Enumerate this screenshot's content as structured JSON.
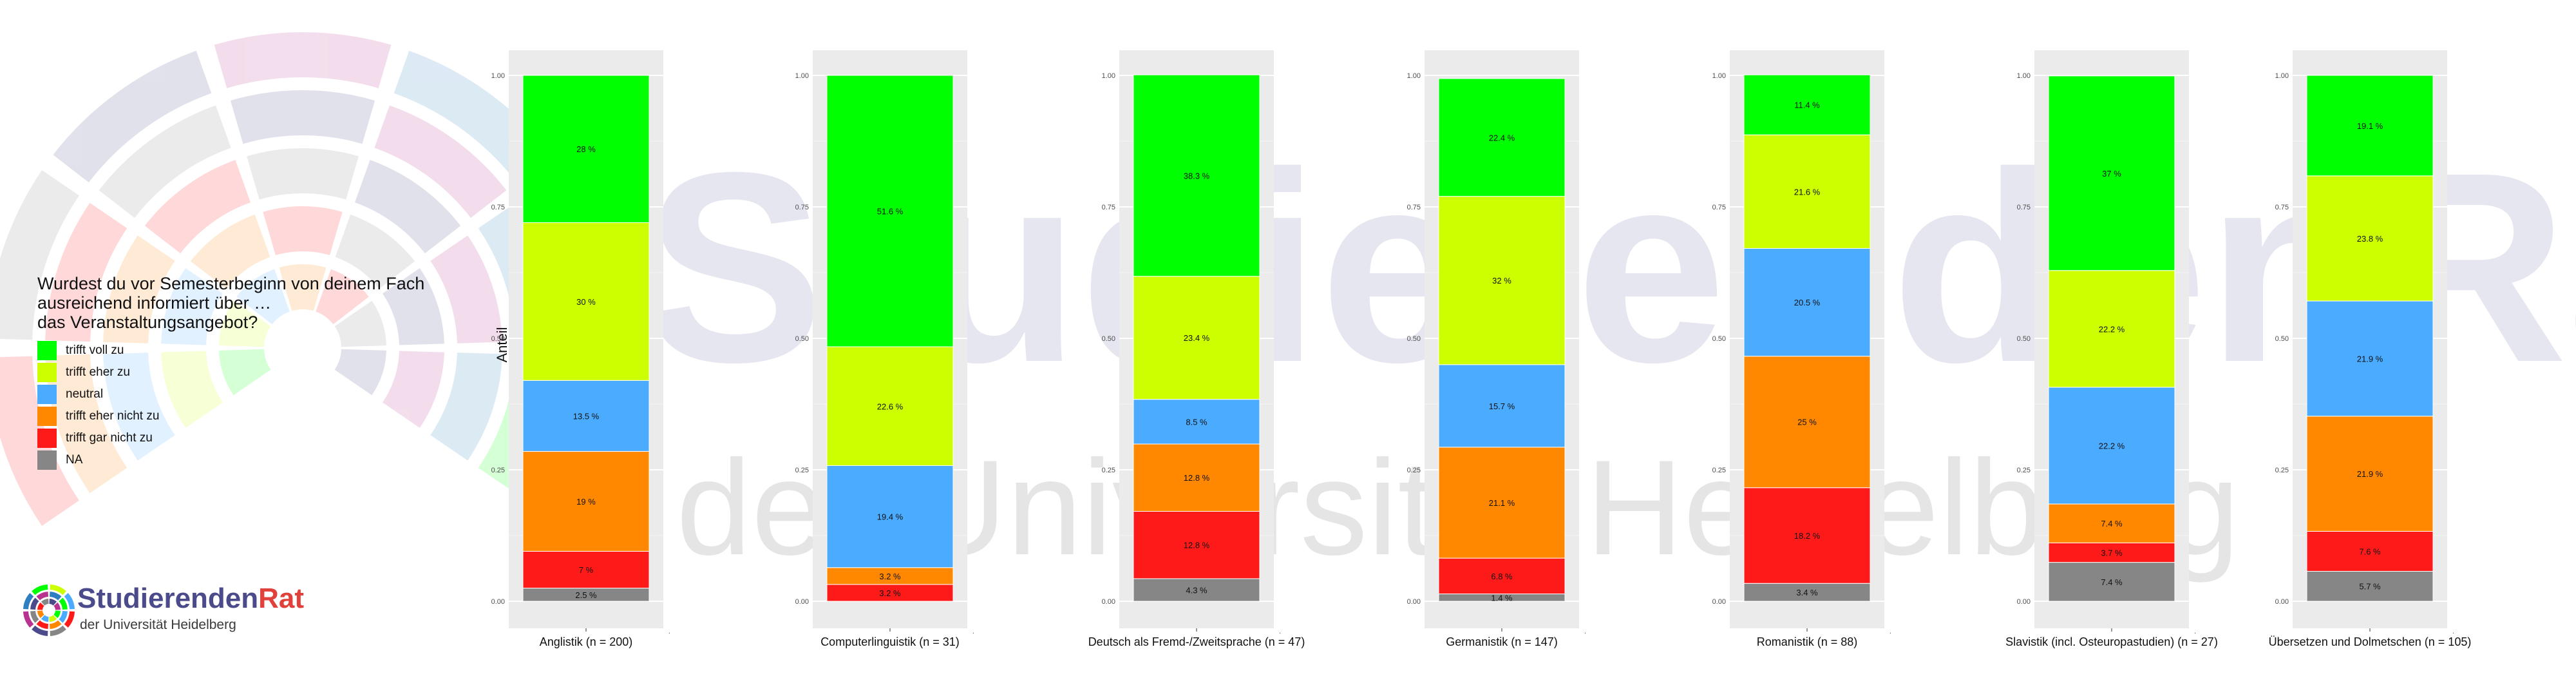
{
  "legend": {
    "title_lines": [
      "Wurdest du vor Semesterbeginn von deinem Fach",
      "ausreichend informiert über …",
      "das Veranstaltungsangebot?"
    ],
    "items": [
      {
        "label": "trifft voll zu",
        "color": "#00ff00"
      },
      {
        "label": "trifft eher zu",
        "color": "#ccff00"
      },
      {
        "label": "neutral",
        "color": "#4aabff"
      },
      {
        "label": "trifft eher nicht zu",
        "color": "#ff8800"
      },
      {
        "label": "trifft gar nicht zu",
        "color": "#ff1a1a"
      },
      {
        "label": "NA",
        "color": "#868686"
      }
    ]
  },
  "logo": {
    "name_part1": "Studierenden",
    "name_part2": "Rat",
    "subtitle": "der Universität Heidelberg"
  },
  "watermark": {
    "line1": "StudierendenRat",
    "line2": "der Universität Heidelberg"
  },
  "chart_data": {
    "type": "bar",
    "stacked": true,
    "ylabel": "Anteil",
    "ylim": [
      0,
      1
    ],
    "yticks": [
      "0.00",
      "0.25",
      "0.50",
      "0.75",
      "1.00"
    ],
    "stack_order_bottom_to_top": [
      "NA",
      "trifft gar nicht zu",
      "trifft eher nicht zu",
      "neutral",
      "trifft eher zu",
      "trifft voll zu"
    ],
    "categories": [
      "Anglistik (n = 200)",
      "Computerlinguistik (n = 31)",
      "Deutsch als Fremd-/Zweitsprache (n = 47)",
      "Germanistik (n = 147)",
      "Romanistik (n = 88)",
      "Slavistik (incl. Osteuropastudien) (n = 27)",
      "Übersetzen und Dolmetschen (n = 105)"
    ],
    "series": [
      {
        "name": "NA",
        "values": [
          0.025,
          0,
          0.043,
          0.014,
          0.034,
          0.074,
          0.057
        ],
        "labels": [
          "2.5 %",
          "",
          "4.3 %",
          "1.4 %",
          "3.4 %",
          "7.4 %",
          "5.7 %"
        ]
      },
      {
        "name": "trifft gar nicht zu",
        "values": [
          0.07,
          0.032,
          0.128,
          0.068,
          0.182,
          0.037,
          0.076
        ],
        "labels": [
          "7 %",
          "3.2 %",
          "12.8 %",
          "6.8 %",
          "18.2 %",
          "3.7 %",
          "7.6 %"
        ]
      },
      {
        "name": "trifft eher nicht zu",
        "values": [
          0.19,
          0.032,
          0.128,
          0.211,
          0.25,
          0.074,
          0.219
        ],
        "labels": [
          "19 %",
          "3.2 %",
          "12.8 %",
          "21.1 %",
          "25 %",
          "7.4 %",
          "21.9 %"
        ]
      },
      {
        "name": "neutral",
        "values": [
          0.135,
          0.194,
          0.085,
          0.157,
          0.205,
          0.222,
          0.219
        ],
        "labels": [
          "13.5 %",
          "19.4 %",
          "8.5 %",
          "15.7 %",
          "20.5 %",
          "22.2 %",
          "21.9 %"
        ]
      },
      {
        "name": "trifft eher zu",
        "values": [
          0.3,
          0.226,
          0.234,
          0.32,
          0.216,
          0.222,
          0.238
        ],
        "labels": [
          "30 %",
          "22.6 %",
          "23.4 %",
          "32 %",
          "21.6 %",
          "22.2 %",
          "23.8 %"
        ]
      },
      {
        "name": "trifft voll zu",
        "values": [
          0.28,
          0.516,
          0.383,
          0.224,
          0.114,
          0.37,
          0.191
        ],
        "labels": [
          "28 %",
          "51.6 %",
          "38.3 %",
          "22.4 %",
          "11.4 %",
          "37 %",
          "19.1 %"
        ]
      }
    ]
  }
}
